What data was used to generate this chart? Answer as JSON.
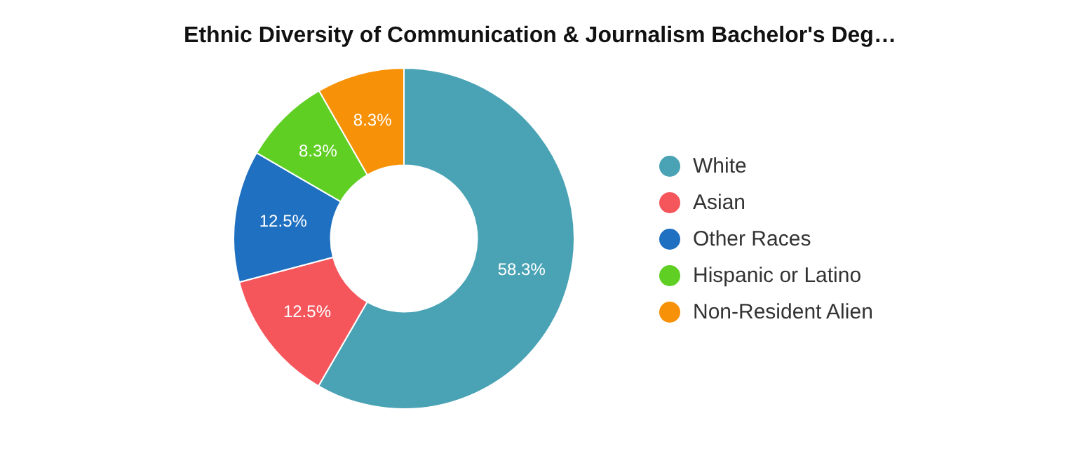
{
  "chart_data": {
    "type": "donut",
    "title": "Ethnic Diversity of Communication & Journalism Bachelor's Deg…",
    "categories": [
      "White",
      "Asian",
      "Other Races",
      "Hispanic or Latino",
      "Non-Resident Alien"
    ],
    "values": [
      58.3,
      12.5,
      12.5,
      8.3,
      8.3
    ],
    "colors": [
      "#4aa3b5",
      "#f5565b",
      "#1f70c1",
      "#5fcf24",
      "#f79108"
    ],
    "value_labels": [
      "58.3%",
      "12.5%",
      "12.5%",
      "8.3%",
      "8.3%"
    ],
    "legend": "right"
  }
}
